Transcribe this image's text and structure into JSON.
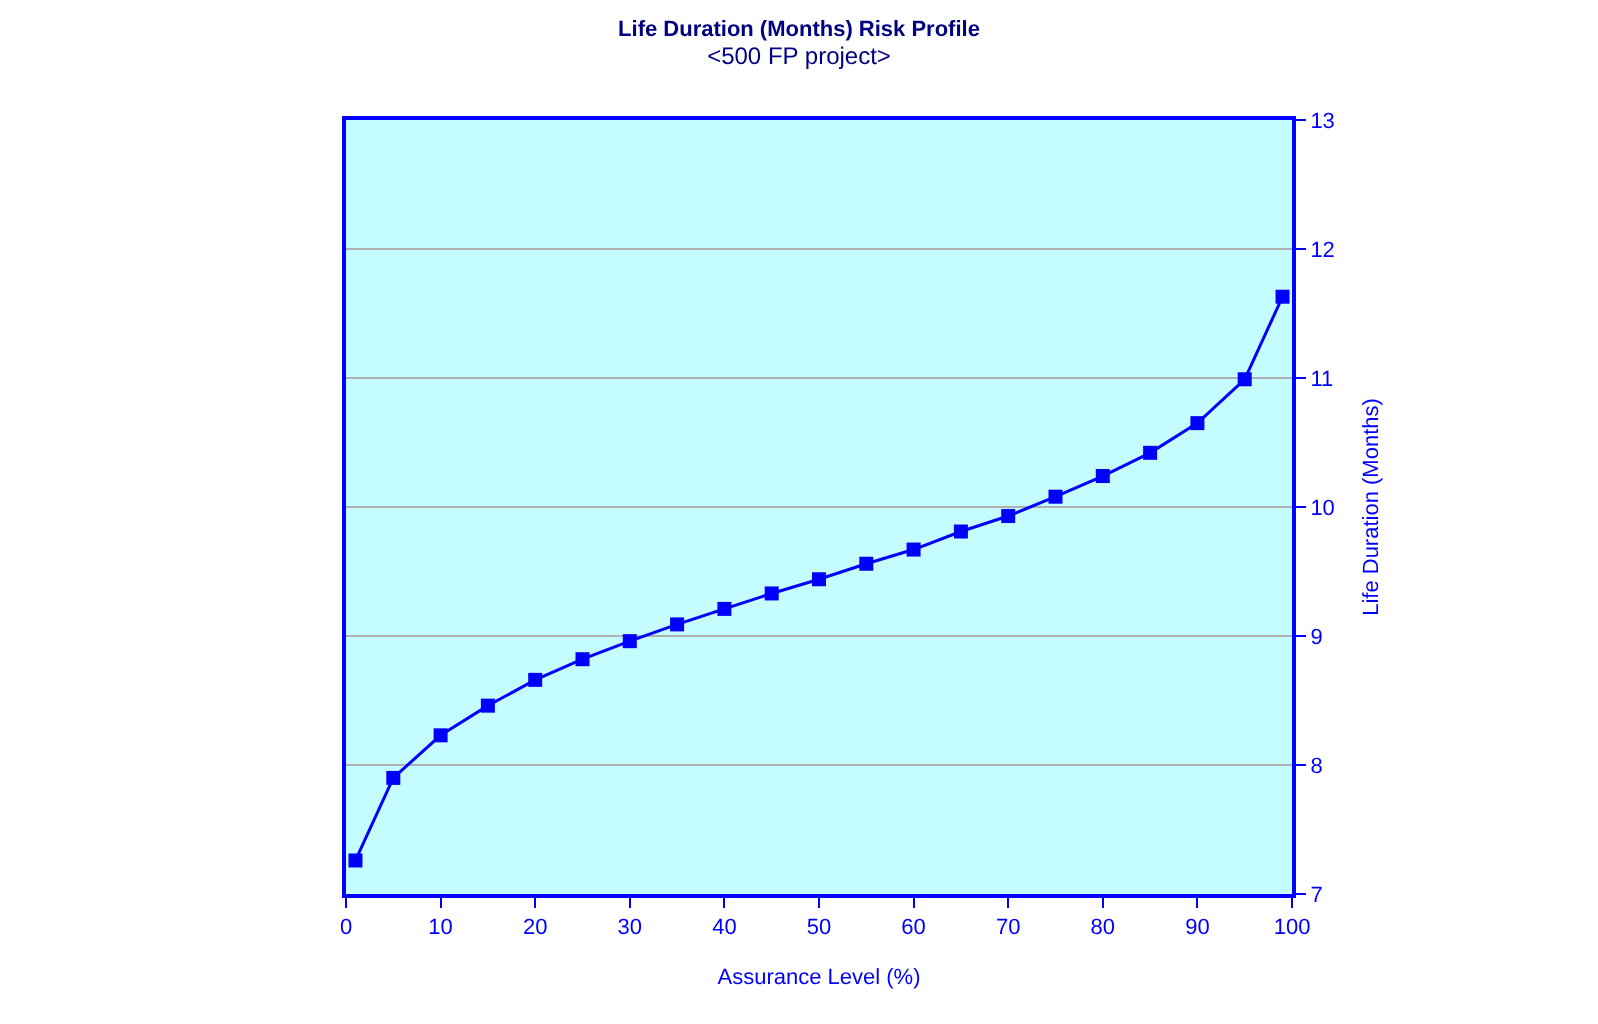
{
  "chart_data": {
    "type": "line",
    "title": "Life Duration (Months) Risk Profile",
    "subtitle": "<500 FP project>",
    "xlabel": "Assurance Level (%)",
    "ylabel": "Life Duration (Months)",
    "x": [
      1,
      5,
      10,
      15,
      20,
      25,
      30,
      35,
      40,
      45,
      50,
      55,
      60,
      65,
      70,
      75,
      80,
      85,
      90,
      95,
      99
    ],
    "series": [
      {
        "color": "#0000ff",
        "values": [
          7.26,
          7.9,
          8.23,
          8.46,
          8.66,
          8.82,
          8.96,
          9.09,
          9.21,
          9.33,
          9.44,
          9.56,
          9.67,
          9.81,
          9.93,
          10.08,
          10.24,
          10.42,
          10.65,
          10.99,
          11.63
        ]
      }
    ],
    "xlim": [
      0,
      100
    ],
    "xticks": [
      0,
      10,
      20,
      30,
      40,
      50,
      60,
      70,
      80,
      90,
      100
    ],
    "ylim": [
      7,
      13
    ],
    "yticks": [
      7,
      8,
      9,
      10,
      11,
      12,
      13
    ],
    "grid": "y",
    "marker": "square",
    "line_style": "solid"
  }
}
